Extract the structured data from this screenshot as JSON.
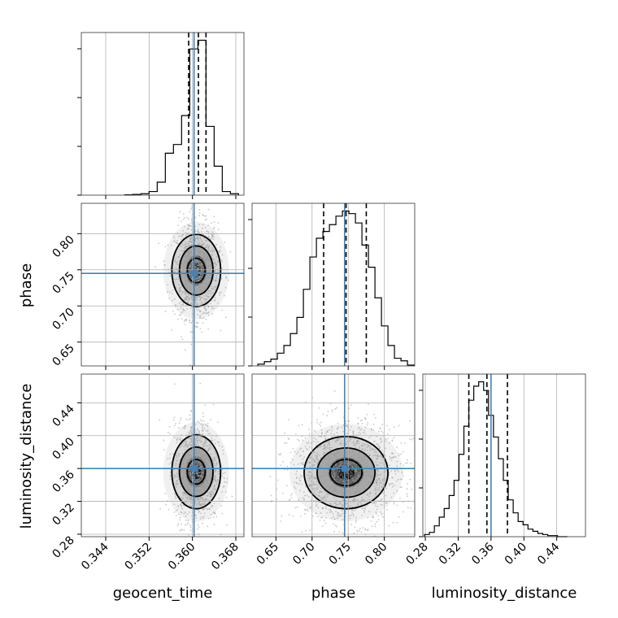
{
  "chart_data": {
    "type": "corner",
    "parameters": [
      "geocent_time",
      "phase",
      "luminosity_distance"
    ],
    "truths": {
      "geocent_time": 0.3603,
      "phase": 0.745,
      "luminosity_distance": 0.36
    },
    "truth_color": "#4682b4",
    "ranges": {
      "geocent_time": [
        0.3395,
        0.3695
      ],
      "phase": [
        0.617,
        0.842
      ],
      "luminosity_distance": [
        0.277,
        0.475
      ]
    },
    "ticks": {
      "geocent_time": {
        "values": [
          0.344,
          0.352,
          0.36,
          0.368
        ],
        "labels": [
          "0.344",
          "0.352",
          "0.360",
          "0.368"
        ]
      },
      "phase": {
        "values": [
          0.65,
          0.7,
          0.75,
          0.8
        ],
        "labels": [
          "0.65",
          "0.70",
          "0.75",
          "0.80"
        ]
      },
      "luminosity_distance": {
        "values": [
          0.28,
          0.32,
          0.36,
          0.4,
          0.44
        ],
        "labels": [
          "0.28",
          "0.32",
          "0.36",
          "0.40",
          "0.44"
        ]
      }
    },
    "histograms": {
      "geocent_time": {
        "edges": [
          0.3475,
          0.349,
          0.3505,
          0.352,
          0.3535,
          0.355,
          0.3565,
          0.358,
          0.3595,
          0.361,
          0.3625,
          0.364,
          0.3655,
          0.367,
          0.3685
        ],
        "counts": [
          0.5,
          1,
          2,
          5,
          18,
          58,
          70,
          110,
          202,
          214,
          95,
          40,
          5,
          2
        ]
      },
      "phase": {
        "edges": [
          0.625,
          0.634,
          0.643,
          0.652,
          0.661,
          0.67,
          0.679,
          0.688,
          0.697,
          0.706,
          0.715,
          0.724,
          0.733,
          0.742,
          0.751,
          0.76,
          0.769,
          0.778,
          0.787,
          0.796,
          0.805,
          0.814,
          0.823,
          0.832,
          0.841
        ],
        "counts": [
          2,
          5,
          8,
          15,
          24,
          38,
          57,
          90,
          128,
          150,
          158,
          166,
          176,
          182,
          179,
          168,
          142,
          116,
          80,
          47,
          24,
          9,
          6,
          1
        ]
      },
      "luminosity_distance": {
        "edges": [
          0.279,
          0.285,
          0.291,
          0.297,
          0.303,
          0.309,
          0.315,
          0.321,
          0.327,
          0.333,
          0.339,
          0.345,
          0.351,
          0.357,
          0.363,
          0.369,
          0.375,
          0.381,
          0.387,
          0.393,
          0.399,
          0.405,
          0.411,
          0.417,
          0.423,
          0.429,
          0.435,
          0.441,
          0.447,
          0.453
        ],
        "counts": [
          2,
          4,
          10,
          18,
          26,
          38,
          52,
          76,
          102,
          126,
          139,
          143,
          135,
          112,
          92,
          72,
          52,
          34,
          22,
          14,
          11,
          7,
          5,
          3,
          2,
          1,
          1,
          0,
          0
        ]
      }
    },
    "quantiles": {
      "geocent_time": [
        0.3593,
        0.3611,
        0.3625
      ],
      "phase": [
        0.716,
        0.747,
        0.775
      ],
      "luminosity_distance": [
        0.333,
        0.355,
        0.38
      ]
    },
    "scatter_2d": {
      "phase_vs_geocent_time": {
        "x": "geocent_time",
        "y": "phase",
        "center": [
          0.3607,
          0.749
        ],
        "sigma": [
          0.0016,
          0.026
        ],
        "n_points": 1400,
        "contour_levels": [
          [
            0.00165,
            0.017
          ],
          [
            0.0031,
            0.034
          ],
          [
            0.0045,
            0.05
          ]
        ]
      },
      "luminosity_distance_vs_geocent_time": {
        "x": "geocent_time",
        "y": "luminosity_distance",
        "center": [
          0.3607,
          0.356
        ],
        "sigma": [
          0.0016,
          0.024
        ],
        "n_points": 1400,
        "contour_levels": [
          [
            0.00165,
            0.015
          ],
          [
            0.0031,
            0.03
          ],
          [
            0.0045,
            0.045
          ]
        ]
      },
      "luminosity_distance_vs_phase": {
        "x": "phase",
        "y": "luminosity_distance",
        "center": [
          0.747,
          0.355
        ],
        "sigma": [
          0.03,
          0.024
        ],
        "n_points": 1600,
        "contour_levels": [
          [
            0.022,
            0.016
          ],
          [
            0.04,
            0.03
          ],
          [
            0.058,
            0.044
          ]
        ]
      }
    },
    "xlabel": [
      "geocent_time",
      "phase",
      "luminosity_distance"
    ],
    "ylabel": [
      "",
      "phase",
      "luminosity_distance"
    ],
    "grid": true,
    "histogram_color": "#000000",
    "quantile_line_style": "dashed"
  }
}
